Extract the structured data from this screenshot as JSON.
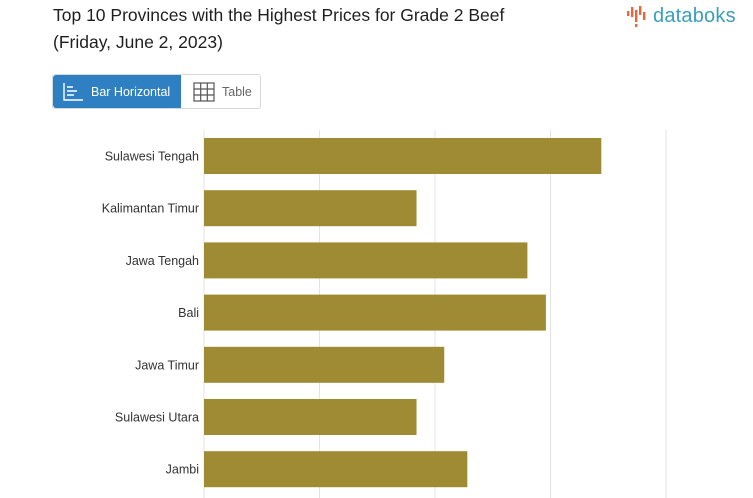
{
  "header": {
    "title_line1": "Top 10 Provinces with the Highest Prices for Grade 2 Beef",
    "title_line2": "(Friday, June 2, 2023)",
    "logo_text": "databoks"
  },
  "toggle": {
    "bar_label": "Bar Horizontal",
    "table_label": "Table"
  },
  "colors": {
    "bar": "#9e8b33",
    "grid": "#e3e3e3",
    "accent": "#2f80c2",
    "logo_teal": "#3a9fb8",
    "logo_orange": "#e8673a"
  },
  "chart_data": {
    "type": "bar",
    "orientation": "horizontal",
    "categories": [
      "Sulawesi Tengah",
      "Kalimantan Timur",
      "Jawa Tengah",
      "Bali",
      "Jawa Timur",
      "Sulawesi Utara",
      "Jambi"
    ],
    "values": [
      173000,
      153000,
      165000,
      167000,
      156000,
      153000,
      158500
    ],
    "xlim": [
      130000,
      180000
    ],
    "grid": true
  }
}
